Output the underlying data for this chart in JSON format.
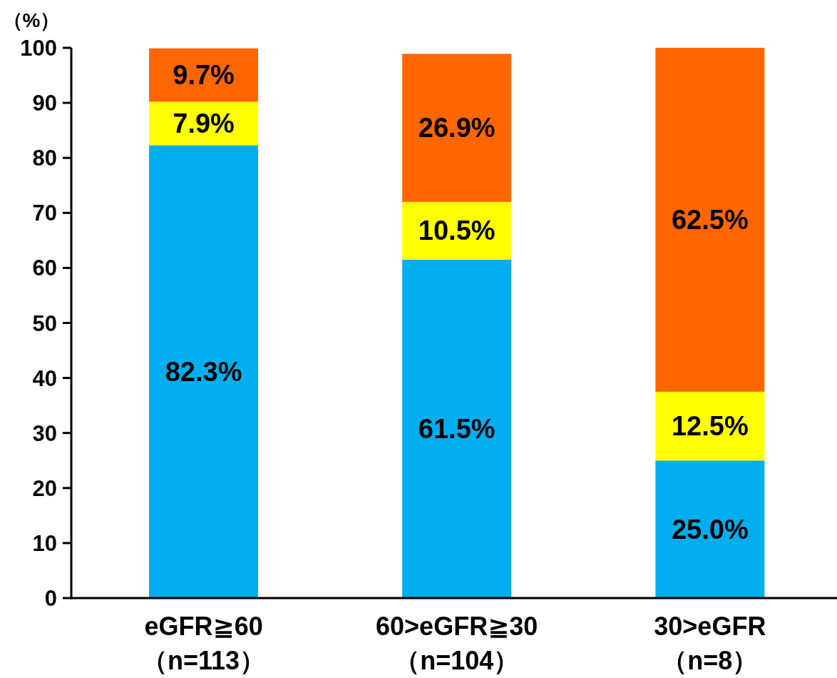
{
  "chart_data": {
    "type": "bar",
    "stacked": true,
    "ylabel": "（%）",
    "categories": [
      "eGFR≧60\n（n=113）",
      "60>eGFR≧30\n（n=104）",
      "30>eGFR\n（n=8）"
    ],
    "series": [
      {
        "color": "#00aeef",
        "values": [
          82.3,
          61.5,
          25.0
        ],
        "value_labels": [
          "82.3%",
          "61.5%",
          "25.0%"
        ]
      },
      {
        "color": "#ffff00",
        "values": [
          7.9,
          10.5,
          12.5
        ],
        "value_labels": [
          "7.9%",
          "10.5%",
          "12.5%"
        ]
      },
      {
        "color": "#ff6600",
        "values": [
          9.7,
          26.9,
          62.5
        ],
        "value_labels": [
          "9.7%",
          "26.9%",
          "62.5%"
        ]
      }
    ],
    "ylim": [
      0,
      100
    ],
    "yticks": [
      0,
      10,
      20,
      30,
      40,
      50,
      60,
      70,
      80,
      90,
      100
    ],
    "grid": false
  }
}
